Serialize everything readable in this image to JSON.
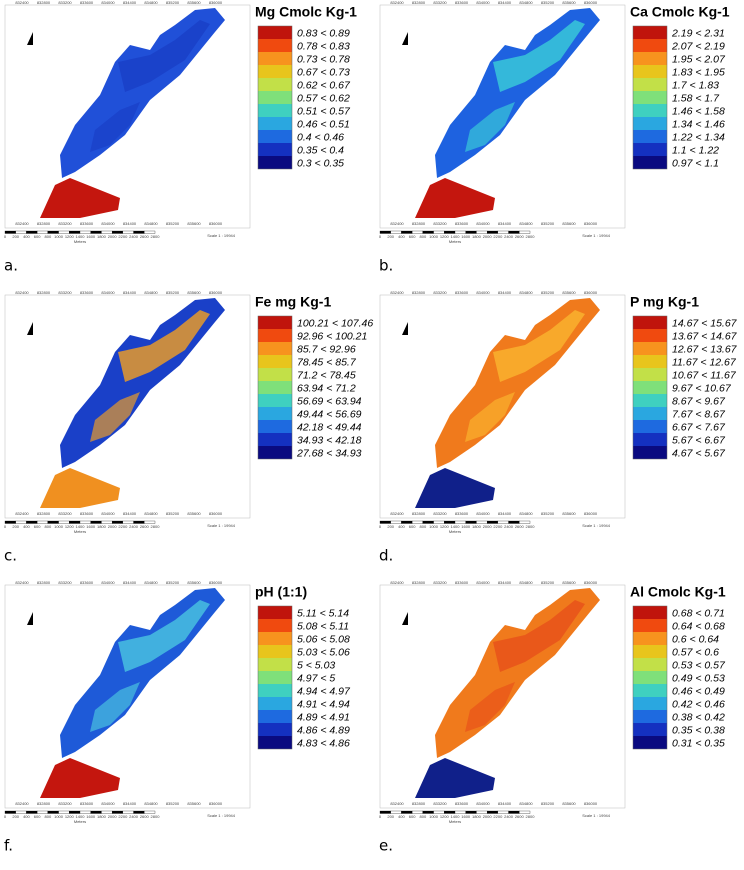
{
  "frame": {
    "x_ticks": [
      "832400",
      "832800",
      "833200",
      "833600",
      "834000",
      "834400",
      "834800",
      "835200",
      "835600",
      "836000"
    ],
    "scale_labels": [
      "0",
      "200",
      "400",
      "600",
      "800",
      "1000",
      "1200",
      "1400",
      "1600",
      "1800",
      "2000",
      "2200",
      "2400",
      "2600",
      "2800"
    ],
    "scale_unit": "Meters",
    "scale_ratio": "Scale 1 : 19944"
  },
  "legend_colors": [
    "#c0140c",
    "#f04a0f",
    "#f7931e",
    "#e8c51c",
    "#c2e048",
    "#7fe07a",
    "#3fd0c0",
    "#2aa7e0",
    "#1e6ae0",
    "#1430c0",
    "#0a0a80"
  ],
  "panels": [
    {
      "letter": "a.",
      "title": "Mg Cmolc Kg-1",
      "classes": [
        "0.83 < 0.89",
        "0.78 < 0.83",
        "0.73 < 0.78",
        "0.67 < 0.73",
        "0.62 < 0.67",
        "0.57 < 0.62",
        "0.51 < 0.57",
        "0.46 < 0.51",
        "0.4 < 0.46",
        "0.35 < 0.4",
        "0.3 < 0.35"
      ],
      "field_colors": {
        "north": "#2050d8",
        "patch": "#1a3fc8",
        "south": "#c4160e"
      }
    },
    {
      "letter": "b.",
      "title": "Ca Cmolc Kg-1",
      "classes": [
        "2.19 < 2.31",
        "2.07 < 2.19",
        "1.95 < 2.07",
        "1.83 < 1.95",
        "1.7 < 1.83",
        "1.58 < 1.7",
        "1.46 < 1.58",
        "1.34 < 1.46",
        "1.22 < 1.34",
        "1.1 < 1.22",
        "0.97 < 1.1"
      ],
      "field_colors": {
        "north": "#1e62e0",
        "patch": "#38c8d8",
        "south": "#c4160e"
      }
    },
    {
      "letter": "c.",
      "title": "Fe mg Kg-1",
      "classes": [
        "100.21 < 107.46",
        "92.96 < 100.21",
        "85.7 < 92.96",
        "78.45 < 85.7",
        "71.2 < 78.45",
        "63.94 < 71.2",
        "56.69 < 63.94",
        "49.44 < 56.69",
        "42.18 < 49.44",
        "34.93 < 42.18",
        "27.68 < 34.93"
      ],
      "field_colors": {
        "north": "#1a40c8",
        "patch": "#e89a2a",
        "south": "#f09020"
      }
    },
    {
      "letter": "d.",
      "title": "P mg Kg-1",
      "classes": [
        "14.67 < 15.67",
        "13.67 < 14.67",
        "12.67 < 13.67",
        "11.67 < 12.67",
        "10.67 < 11.67",
        "9.67 < 10.67",
        "8.67 < 9.67",
        "7.67 < 8.67",
        "6.67 < 7.67",
        "5.67 < 6.67",
        "4.67 < 5.67"
      ],
      "field_colors": {
        "north": "#f07a1c",
        "patch": "#f9b22e",
        "south": "#10208a"
      }
    },
    {
      "letter": "f.",
      "title": "pH (1:1)",
      "classes": [
        "5.11 < 5.14",
        "5.08 < 5.11",
        "5.06 < 5.08",
        "5.03 < 5.06",
        "5 < 5.03",
        "4.97 < 5",
        "4.94 < 4.97",
        "4.91 < 4.94",
        "4.89 < 4.91",
        "4.86 < 4.89",
        "4.83 < 4.86"
      ],
      "field_colors": {
        "north": "#1e5ad8",
        "patch": "#48c0e0",
        "south": "#c4160e"
      }
    },
    {
      "letter": "e.",
      "title": "Al Cmolc Kg-1",
      "classes": [
        "0.68 < 0.71",
        "0.64 < 0.68",
        "0.6 < 0.64",
        "0.57 < 0.6",
        "0.53 < 0.57",
        "0.49 < 0.53",
        "0.46 < 0.49",
        "0.42 < 0.46",
        "0.38 < 0.42",
        "0.35 < 0.38",
        "0.31 < 0.35"
      ],
      "field_colors": {
        "north": "#f07a1c",
        "patch": "#e8521a",
        "south": "#10208a"
      }
    }
  ]
}
